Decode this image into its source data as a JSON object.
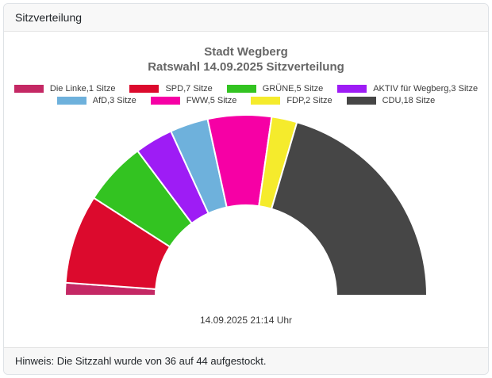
{
  "card": {
    "header": {
      "title": "Sitzverteilung"
    },
    "footer": {
      "note": "Hinweis: Die Sitzzahl wurde von 36 auf 44 aufgestockt."
    }
  },
  "chart_data": {
    "type": "pie",
    "variant": "half-donut",
    "title": "Stadt Wegberg",
    "subtitle": "Ratswahl 14.09.2025 Sitzverteilung",
    "total_seats": 44,
    "unit": "Sitze",
    "start_angle_deg": 180,
    "end_angle_deg": 0,
    "inner_radius_ratio": 0.5,
    "legend_position": "top",
    "legend_rows": 2,
    "timestamp": "14.09.2025 21:14 Uhr",
    "series": [
      {
        "name": "Die Linke",
        "seats": 1,
        "label": "Die Linke,1 Sitze",
        "color": "#C42864"
      },
      {
        "name": "SPD",
        "seats": 7,
        "label": "SPD,7 Sitze",
        "color": "#DC0A2D"
      },
      {
        "name": "GRÜNE",
        "seats": 5,
        "label": "GRÜNE,5 Sitze",
        "color": "#33C321"
      },
      {
        "name": "AKTIV für Wegberg",
        "seats": 3,
        "label": "AKTIV für Wegberg,3 Sitze",
        "color": "#9E1CF5"
      },
      {
        "name": "AfD",
        "seats": 3,
        "label": "AfD,3 Sitze",
        "color": "#6EB1DC"
      },
      {
        "name": "FWW",
        "seats": 5,
        "label": "FWW,5 Sitze",
        "color": "#F600A5"
      },
      {
        "name": "FDP",
        "seats": 2,
        "label": "FDP,2 Sitze",
        "color": "#F5EB2C"
      },
      {
        "name": "CDU",
        "seats": 18,
        "label": "CDU,18 Sitze",
        "color": "#464646"
      }
    ]
  }
}
